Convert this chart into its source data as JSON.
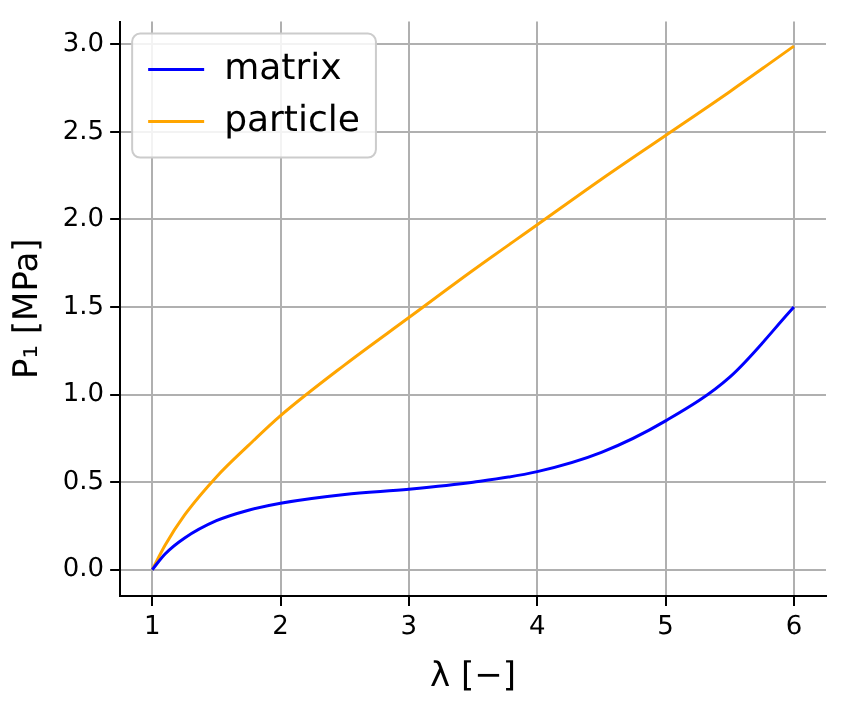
{
  "chart_data": {
    "type": "line",
    "xlabel": "λ [−]",
    "ylabel": "P₁ [MPa]",
    "x": [
      1,
      1.1,
      1.25,
      1.5,
      1.75,
      2,
      2.5,
      3,
      3.5,
      4,
      4.5,
      5,
      5.5,
      6
    ],
    "series": [
      {
        "name": "matrix",
        "color": "#0000ff",
        "values": [
          0,
          0.09,
          0.18,
          0.28,
          0.34,
          0.38,
          0.43,
          0.46,
          0.5,
          0.56,
          0.67,
          0.85,
          1.1,
          1.5
        ]
      },
      {
        "name": "particle",
        "color": "#ffa500",
        "values": [
          0,
          0.14,
          0.31,
          0.53,
          0.71,
          0.88,
          1.17,
          1.44,
          1.71,
          1.97,
          2.23,
          2.48,
          2.73,
          2.99
        ]
      }
    ],
    "xlim": [
      0.75,
      6.25
    ],
    "ylim": [
      -0.15,
      3.13
    ],
    "xticks": [
      1,
      2,
      3,
      4,
      5,
      6
    ],
    "yticks": [
      {
        "value": 0,
        "label": "0.0"
      },
      {
        "value": 0.5,
        "label": "0.5"
      },
      {
        "value": 1,
        "label": "1.0"
      },
      {
        "value": 1.5,
        "label": "1.5"
      },
      {
        "value": 2,
        "label": "2.0"
      },
      {
        "value": 2.5,
        "label": "2.5"
      },
      {
        "value": 3,
        "label": "3.0"
      }
    ],
    "grid": true,
    "legend": "top left",
    "marker": "none",
    "line_style": "solid"
  }
}
